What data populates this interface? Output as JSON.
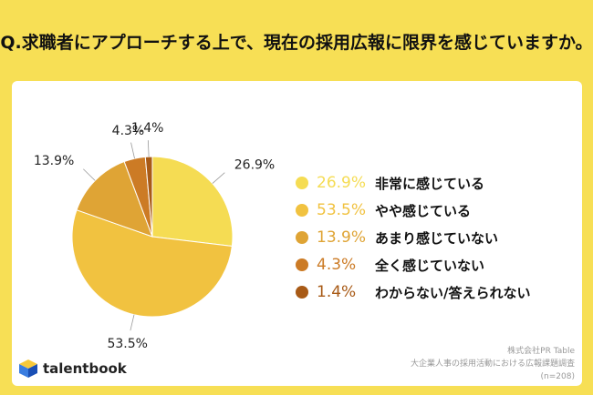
{
  "title": "Q.求職者にアプローチする上で、現在の採用広報に限界を感じていますか。",
  "colors": {
    "accent": "#f7df55"
  },
  "chart_data": {
    "type": "pie",
    "categories": [
      "非常に感じている",
      "やや感じている",
      "あまり感じていない",
      "全く感じていない",
      "わからない/答えられない"
    ],
    "values": [
      26.9,
      53.5,
      13.9,
      4.3,
      1.4
    ],
    "labels": [
      "26.9%",
      "53.5%",
      "13.9%",
      "4.3%",
      "1.4%"
    ],
    "colors": [
      "#f5dc53",
      "#f1c240",
      "#dfa435",
      "#cc7b25",
      "#a85a16"
    ]
  },
  "source": {
    "company": "株式会社PR Table",
    "survey": "大企業人事の採用活動における広報課題調査",
    "n": "(n=208)"
  },
  "brand": {
    "name": "talentbook",
    "icon": "cube-logo-icon"
  }
}
